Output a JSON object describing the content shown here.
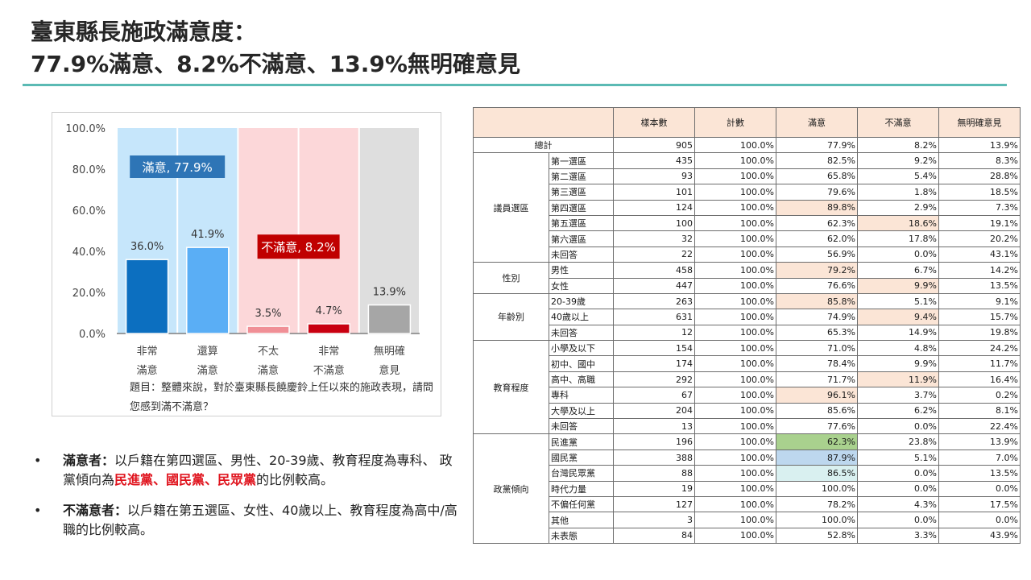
{
  "title": {
    "line1": "臺東縣長施政滿意度：",
    "line2": "77.9%滿意、8.2%不滿意、13.9%無明確意見"
  },
  "chart_data": {
    "type": "bar",
    "categories": [
      "非常滿意",
      "還算滿意",
      "不太滿意",
      "非常不滿意",
      "無明確意見"
    ],
    "category_lines": [
      [
        "非常",
        "滿意"
      ],
      [
        "還算",
        "滿意"
      ],
      [
        "不太",
        "滿意"
      ],
      [
        "非常",
        "不滿意"
      ],
      [
        "無明確",
        "意見"
      ]
    ],
    "values": [
      36.0,
      41.9,
      3.5,
      4.7,
      13.9
    ],
    "value_labels": [
      "36.0%",
      "41.9%",
      "3.5%",
      "4.7%",
      "13.9%"
    ],
    "bar_colors": [
      "#0c6fc0",
      "#5aaef5",
      "#f08f96",
      "#c90010",
      "#a6a6a6"
    ],
    "zone_colors": [
      "#c6e6fb",
      "#c6e6fb",
      "#fcd7d9",
      "#fcd7d9",
      "#dedede"
    ],
    "ylim": [
      0,
      100
    ],
    "yticks": [
      "0.0%",
      "20.0%",
      "40.0%",
      "60.0%",
      "80.0%",
      "100.0%"
    ],
    "ytick_values": [
      0,
      20,
      40,
      60,
      80,
      100
    ],
    "annotations": [
      {
        "text": "滿意, 77.9%",
        "color": "#2e75b6"
      },
      {
        "text": "不滿意, 8.2%",
        "color": "#c00000"
      }
    ],
    "question": "題目：整體來說，對於臺東縣長饒慶鈴上任以來的施政表現，請問您感到滿不滿意？"
  },
  "bullets": [
    {
      "bold": "滿意者：",
      "text_before": "以戶籍在第四選區、男性、20-39歲、教育程度為專科、 政黨傾向為",
      "red": "民進黨、國民黨、民眾黨",
      "text_after": "的比例較高。"
    },
    {
      "bold": "不滿意者：",
      "text_before": "以戶籍在第五選區、女性、40歲以上、教育程度為高中/高職的比例較高。",
      "red": "",
      "text_after": ""
    }
  ],
  "table": {
    "headers": [
      "樣本數",
      "計數",
      "滿意",
      "不滿意",
      "無明確意見"
    ],
    "total": {
      "label": "總計",
      "values": [
        "905",
        "100.0%",
        "77.9%",
        "8.2%",
        "13.9%"
      ]
    },
    "groups": [
      {
        "name": "議員選區",
        "rows": [
          {
            "label": "第一選區",
            "values": [
              "435",
              "100.0%",
              "82.5%",
              "9.2%",
              "8.3%"
            ],
            "hl": {}
          },
          {
            "label": "第二選區",
            "values": [
              "93",
              "100.0%",
              "65.8%",
              "5.4%",
              "28.8%"
            ],
            "hl": {}
          },
          {
            "label": "第三選區",
            "values": [
              "101",
              "100.0%",
              "79.6%",
              "1.8%",
              "18.5%"
            ],
            "hl": {}
          },
          {
            "label": "第四選區",
            "values": [
              "124",
              "100.0%",
              "89.8%",
              "2.9%",
              "7.3%"
            ],
            "hl": {
              "2": "orange"
            }
          },
          {
            "label": "第五選區",
            "values": [
              "100",
              "100.0%",
              "62.3%",
              "18.6%",
              "19.1%"
            ],
            "hl": {
              "3": "orange"
            }
          },
          {
            "label": "第六選區",
            "values": [
              "32",
              "100.0%",
              "62.0%",
              "17.8%",
              "20.2%"
            ],
            "hl": {}
          },
          {
            "label": "未回答",
            "values": [
              "22",
              "100.0%",
              "56.9%",
              "0.0%",
              "43.1%"
            ],
            "hl": {}
          }
        ]
      },
      {
        "name": "性別",
        "rows": [
          {
            "label": "男性",
            "values": [
              "458",
              "100.0%",
              "79.2%",
              "6.7%",
              "14.2%"
            ],
            "hl": {
              "2": "orange"
            }
          },
          {
            "label": "女性",
            "values": [
              "447",
              "100.0%",
              "76.6%",
              "9.9%",
              "13.5%"
            ],
            "hl": {
              "3": "orange"
            }
          }
        ]
      },
      {
        "name": "年齡別",
        "rows": [
          {
            "label": "20-39歲",
            "values": [
              "263",
              "100.0%",
              "85.8%",
              "5.1%",
              "9.1%"
            ],
            "hl": {
              "2": "orange"
            }
          },
          {
            "label": "40歲以上",
            "values": [
              "631",
              "100.0%",
              "74.9%",
              "9.4%",
              "15.7%"
            ],
            "hl": {
              "3": "orange"
            }
          },
          {
            "label": "未回答",
            "values": [
              "12",
              "100.0%",
              "65.3%",
              "14.9%",
              "19.8%"
            ],
            "hl": {}
          }
        ]
      },
      {
        "name": "教育程度",
        "rows": [
          {
            "label": "小學及以下",
            "values": [
              "154",
              "100.0%",
              "71.0%",
              "4.8%",
              "24.2%"
            ],
            "hl": {}
          },
          {
            "label": "初中、國中",
            "values": [
              "174",
              "100.0%",
              "78.4%",
              "9.9%",
              "11.7%"
            ],
            "hl": {}
          },
          {
            "label": "高中、高職",
            "values": [
              "292",
              "100.0%",
              "71.7%",
              "11.9%",
              "16.4%"
            ],
            "hl": {
              "3": "orange"
            }
          },
          {
            "label": "專科",
            "values": [
              "67",
              "100.0%",
              "96.1%",
              "3.7%",
              "0.2%"
            ],
            "hl": {
              "2": "orange"
            }
          },
          {
            "label": "大學及以上",
            "values": [
              "204",
              "100.0%",
              "85.6%",
              "6.2%",
              "8.1%"
            ],
            "hl": {}
          },
          {
            "label": "未回答",
            "values": [
              "13",
              "100.0%",
              "77.6%",
              "0.0%",
              "22.4%"
            ],
            "hl": {}
          }
        ]
      },
      {
        "name": "政黨傾向",
        "rows": [
          {
            "label": "民進黨",
            "values": [
              "196",
              "100.0%",
              "62.3%",
              "23.8%",
              "13.9%"
            ],
            "hl": {
              "2": "green"
            }
          },
          {
            "label": "國民黨",
            "values": [
              "388",
              "100.0%",
              "87.9%",
              "5.1%",
              "7.0%"
            ],
            "hl": {
              "2": "blue"
            }
          },
          {
            "label": "台灣民眾黨",
            "values": [
              "88",
              "100.0%",
              "86.5%",
              "0.0%",
              "13.5%"
            ],
            "hl": {
              "2": "teal"
            }
          },
          {
            "label": "時代力量",
            "values": [
              "19",
              "100.0%",
              "100.0%",
              "0.0%",
              "0.0%"
            ],
            "hl": {}
          },
          {
            "label": "不偏任何黨",
            "values": [
              "127",
              "100.0%",
              "78.2%",
              "4.3%",
              "17.5%"
            ],
            "hl": {}
          },
          {
            "label": "其他",
            "values": [
              "3",
              "100.0%",
              "100.0%",
              "0.0%",
              "0.0%"
            ],
            "hl": {}
          },
          {
            "label": "未表態",
            "values": [
              "84",
              "100.0%",
              "52.8%",
              "3.3%",
              "43.9%"
            ],
            "hl": {}
          }
        ]
      }
    ]
  }
}
